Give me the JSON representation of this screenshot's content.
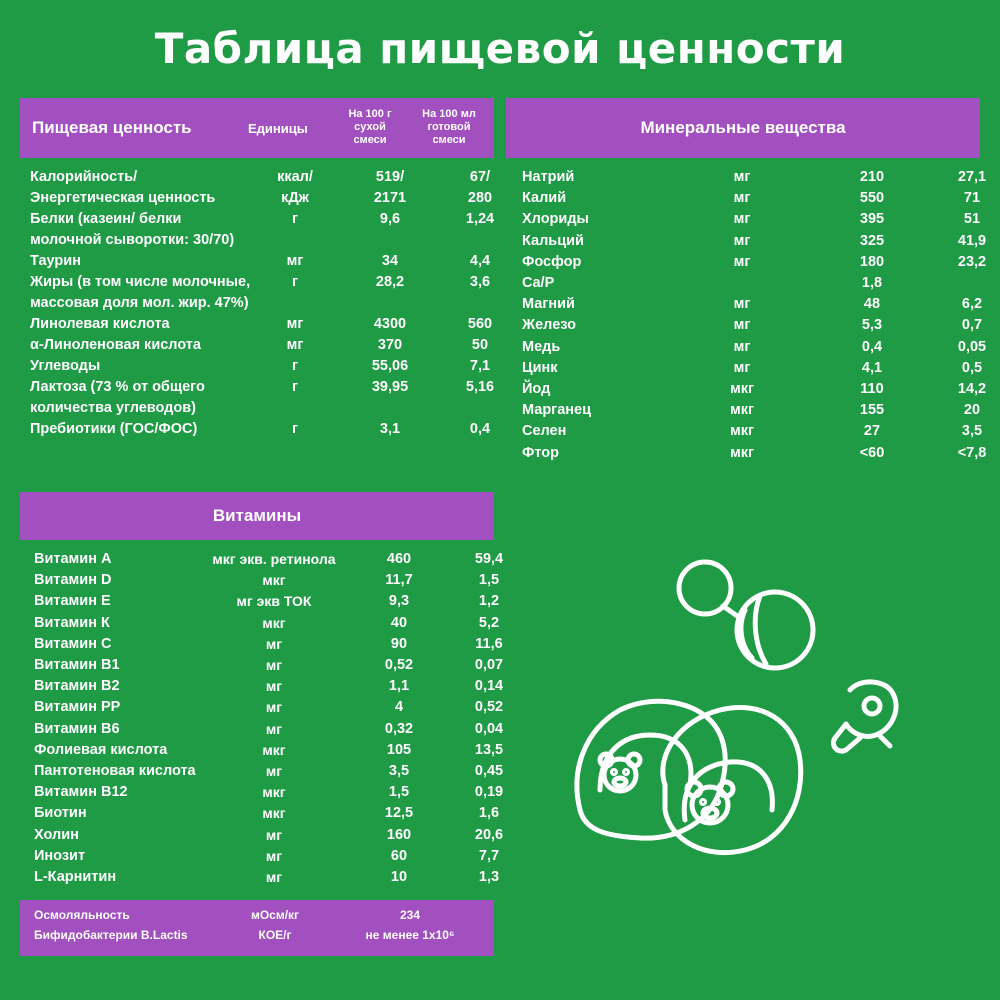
{
  "title": "Таблица пищевой ценности",
  "nutrition": {
    "header": {
      "name": "Пищевая ценность",
      "units": "Единицы",
      "col1": [
        "На 100 г",
        "сухой",
        "смеси"
      ],
      "col2": [
        "На 100 мл",
        "готовой",
        "смеси"
      ]
    },
    "rows": [
      {
        "name": "Калорийность/",
        "unit": "ккал/",
        "v1": "519/",
        "v2": "67/"
      },
      {
        "name": "Энергетическая ценность",
        "unit": "кДж",
        "v1": "2171",
        "v2": "280"
      },
      {
        "name": "Белки (казеин/ белки",
        "unit": "г",
        "v1": "9,6",
        "v2": "1,24"
      },
      {
        "name": "молочной сыворотки: 30/70)",
        "unit": "",
        "v1": "",
        "v2": ""
      },
      {
        "name": "Таурин",
        "unit": "мг",
        "v1": "34",
        "v2": "4,4"
      },
      {
        "name": "Жиры (в том числе молочные,",
        "unit": "г",
        "v1": "28,2",
        "v2": "3,6"
      },
      {
        "name": "массовая доля мол. жир. 47%)",
        "unit": "",
        "v1": "",
        "v2": ""
      },
      {
        "name": "Линолевая кислота",
        "unit": "мг",
        "v1": "4300",
        "v2": "560"
      },
      {
        "name": "α-Линоленовая кислота",
        "unit": "мг",
        "v1": "370",
        "v2": "50"
      },
      {
        "name": "Углеводы",
        "unit": "г",
        "v1": "55,06",
        "v2": "7,1"
      },
      {
        "name": "Лактоза (73 % от общего",
        "unit": "г",
        "v1": "39,95",
        "v2": "5,16"
      },
      {
        "name": "количества углеводов)",
        "unit": "",
        "v1": "",
        "v2": ""
      },
      {
        "name": "Пребиотики (ГОС/ФОС)",
        "unit": "г",
        "v1": "3,1",
        "v2": "0,4"
      }
    ]
  },
  "minerals": {
    "header": "Минеральные вещества",
    "rows": [
      {
        "name": "Натрий",
        "unit": "мг",
        "v1": "210",
        "v2": "27,1"
      },
      {
        "name": "Калий",
        "unit": "мг",
        "v1": "550",
        "v2": "71"
      },
      {
        "name": "Хлориды",
        "unit": "мг",
        "v1": "395",
        "v2": "51"
      },
      {
        "name": "Кальций",
        "unit": "мг",
        "v1": "325",
        "v2": "41,9"
      },
      {
        "name": "Фосфор",
        "unit": "мг",
        "v1": "180",
        "v2": "23,2"
      },
      {
        "name": "Ca/P",
        "unit": "",
        "v1": "1,8",
        "v2": ""
      },
      {
        "name": "Магний",
        "unit": "мг",
        "v1": "48",
        "v2": "6,2"
      },
      {
        "name": "Железо",
        "unit": "мг",
        "v1": "5,3",
        "v2": "0,7"
      },
      {
        "name": "Медь",
        "unit": "мг",
        "v1": "0,4",
        "v2": "0,05"
      },
      {
        "name": "Цинк",
        "unit": "мг",
        "v1": "4,1",
        "v2": "0,5"
      },
      {
        "name": "Йод",
        "unit": "мкг",
        "v1": "110",
        "v2": "14,2"
      },
      {
        "name": "Марганец",
        "unit": "мкг",
        "v1": "155",
        "v2": "20"
      },
      {
        "name": "Селен",
        "unit": "мкг",
        "v1": "27",
        "v2": "3,5"
      },
      {
        "name": "Фтор",
        "unit": "мкг",
        "v1": "<60",
        "v2": "<7,8"
      }
    ]
  },
  "vitamins": {
    "header": "Витамины",
    "rows": [
      {
        "name": "Витамин А",
        "unit": "мкг экв. ретинола",
        "v1": "460",
        "v2": "59,4"
      },
      {
        "name": "Витамин D",
        "unit": "мкг",
        "v1": "11,7",
        "v2": "1,5"
      },
      {
        "name": "Витамин Е",
        "unit": "мг экв ТОК",
        "v1": "9,3",
        "v2": "1,2"
      },
      {
        "name": "Витамин К",
        "unit": "мкг",
        "v1": "40",
        "v2": "5,2"
      },
      {
        "name": "Витамин С",
        "unit": "мг",
        "v1": "90",
        "v2": "11,6"
      },
      {
        "name": "Витамин В1",
        "unit": "мг",
        "v1": "0,52",
        "v2": "0,07"
      },
      {
        "name": "Витамин В2",
        "unit": "мг",
        "v1": "1,1",
        "v2": "0,14"
      },
      {
        "name": "Витамин РР",
        "unit": "мг",
        "v1": "4",
        "v2": "0,52"
      },
      {
        "name": "Витамин В6",
        "unit": "мг",
        "v1": "0,32",
        "v2": "0,04"
      },
      {
        "name": "Фолиевая кислота",
        "unit": "мкг",
        "v1": "105",
        "v2": "13,5"
      },
      {
        "name": "Пантотеновая кислота",
        "unit": "мг",
        "v1": "3,5",
        "v2": "0,45"
      },
      {
        "name": "Витамин В12",
        "unit": "мкг",
        "v1": "1,5",
        "v2": "0,19"
      },
      {
        "name": "Биотин",
        "unit": "мкг",
        "v1": "12,5",
        "v2": "1,6"
      },
      {
        "name": "Холин",
        "unit": "мг",
        "v1": "160",
        "v2": "20,6"
      },
      {
        "name": "Инозит",
        "unit": "мг",
        "v1": "60",
        "v2": "7,7"
      },
      {
        "name": "L-Карнитин",
        "unit": "мг",
        "v1": "10",
        "v2": "1,3"
      }
    ]
  },
  "footer": {
    "rows": [
      {
        "name": "Осмоляльность",
        "unit": "мОсм/кг",
        "value": "234"
      },
      {
        "name": "Бифидобактерии B.Lactis",
        "unit": "КОЕ/г",
        "value": "не менее 1x10⁶"
      }
    ]
  },
  "colors": {
    "background": "#1f9a45",
    "band": "#a24fc0",
    "text": "#ffffff"
  },
  "illustration_icons": [
    "rattle-icon",
    "baby-booties-icon",
    "pacifier-icon"
  ]
}
